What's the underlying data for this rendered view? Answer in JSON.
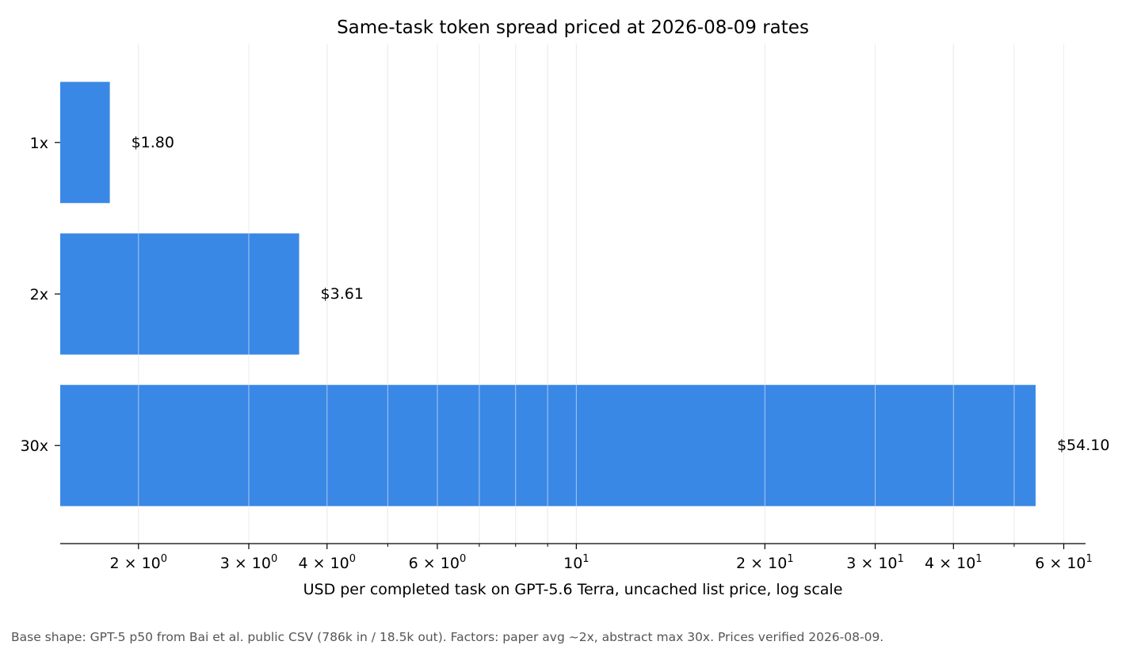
{
  "chart_data": {
    "type": "bar",
    "orientation": "horizontal",
    "title": "Same-task token spread priced at 2026-08-09 rates",
    "xlabel": "USD per completed task on GPT-5.6 Terra, uncached list price, log scale",
    "ylabel": "",
    "x_scale": "log",
    "xlim": [
      1.5,
      65
    ],
    "grid": true,
    "categories": [
      "1x",
      "2x",
      "30x"
    ],
    "values": [
      1.8,
      3.61,
      54.1
    ],
    "value_labels": [
      "$1.80",
      "$3.61",
      "$54.10"
    ],
    "bar_color": "#3a88e5",
    "major_ticks": [
      {
        "value": 2,
        "mantissa": "2",
        "exponent": "0"
      },
      {
        "value": 3,
        "mantissa": "3",
        "exponent": "0"
      },
      {
        "value": 4,
        "mantissa": "4",
        "exponent": "0"
      },
      {
        "value": 6,
        "mantissa": "6",
        "exponent": "0"
      },
      {
        "value": 10,
        "mantissa": "",
        "exponent": "1"
      },
      {
        "value": 20,
        "mantissa": "2",
        "exponent": "1"
      },
      {
        "value": 30,
        "mantissa": "3",
        "exponent": "1"
      },
      {
        "value": 40,
        "mantissa": "4",
        "exponent": "1"
      },
      {
        "value": 60,
        "mantissa": "6",
        "exponent": "1"
      }
    ],
    "minor_ticks": [
      5,
      7,
      8,
      9,
      50
    ]
  },
  "footnote": "Base shape: GPT-5 p50 from Bai et al. public CSV (786k in / 18.5k out). Factors: paper avg ~2x, abstract max 30x. Prices verified 2026-08-09."
}
